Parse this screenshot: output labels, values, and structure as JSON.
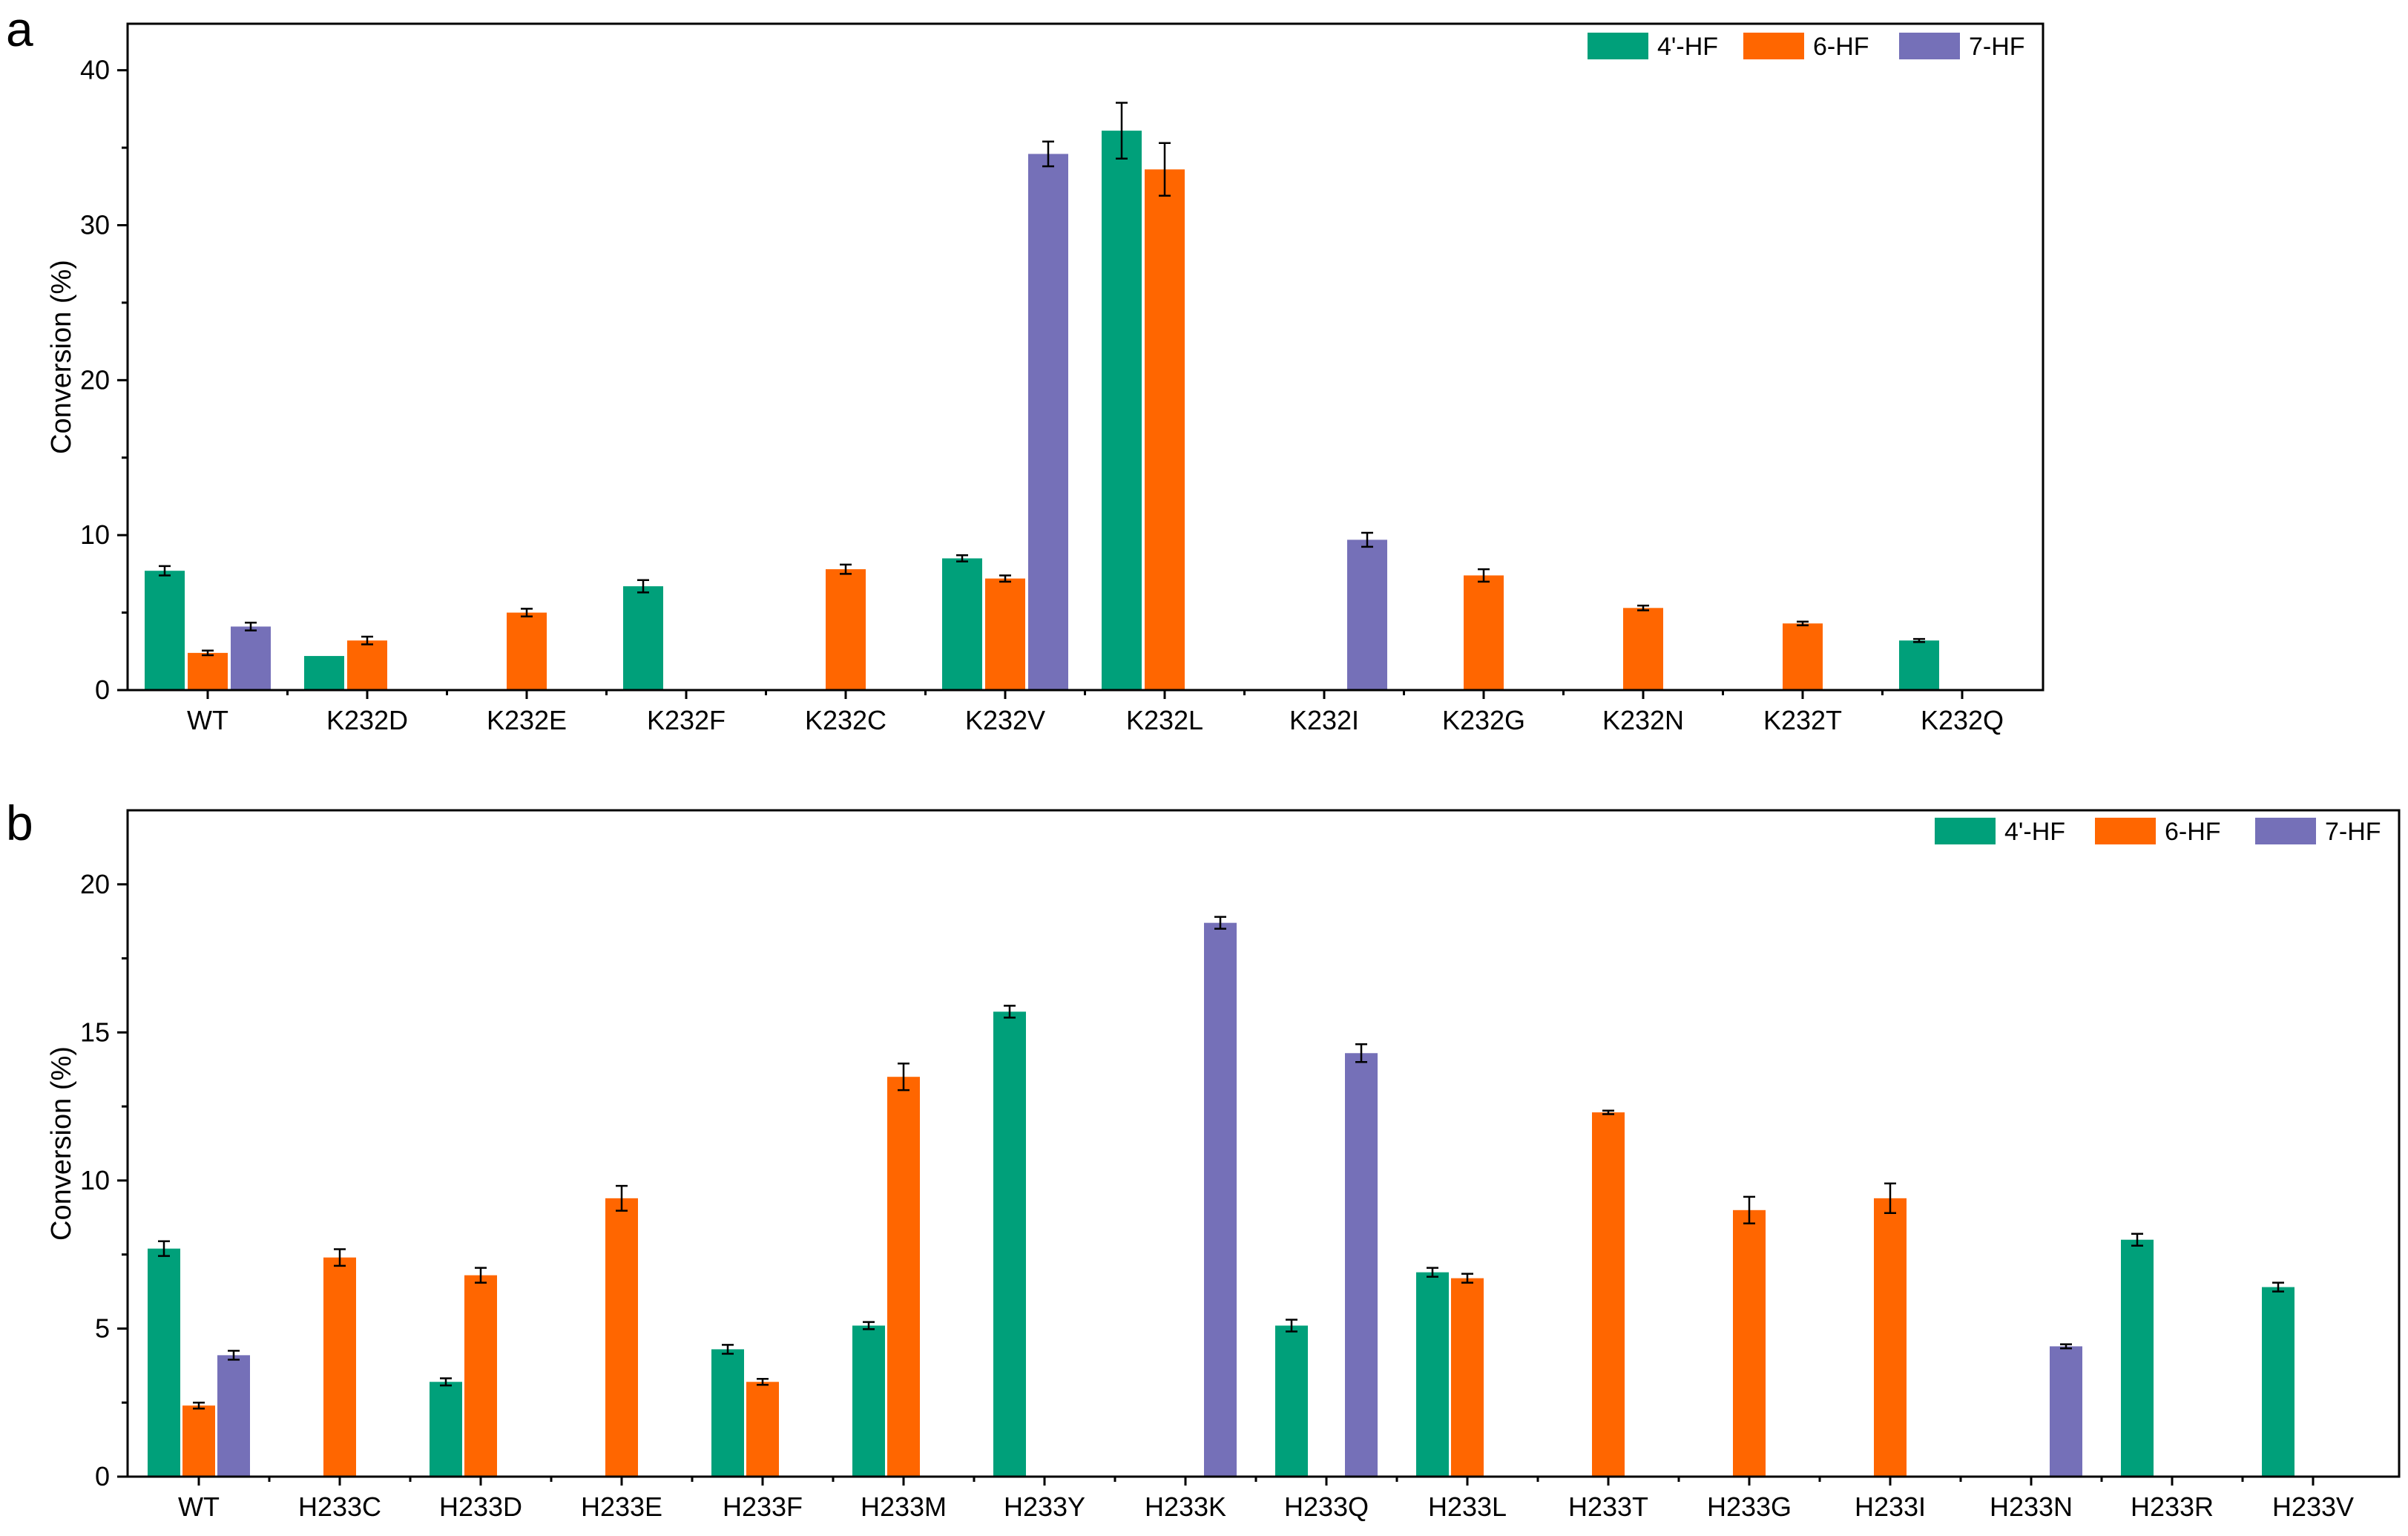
{
  "chart_data": [
    {
      "panel": "a",
      "type": "bar",
      "title": "",
      "xlabel": "",
      "ylabel": "Conversion (%)",
      "ylim": [
        0,
        43
      ],
      "yticks": [
        0,
        10,
        20,
        30,
        40
      ],
      "legend_position": "top-right",
      "categories": [
        "WT",
        "K232D",
        "K232E",
        "K232F",
        "K232C",
        "K232V",
        "K232L",
        "K232I",
        "K232G",
        "K232N",
        "K232T",
        "K232Q"
      ],
      "series": [
        {
          "name": "4'-HF",
          "color": "#00A07A",
          "values": [
            7.7,
            2.2,
            null,
            6.7,
            null,
            8.5,
            36.1,
            null,
            null,
            null,
            null,
            3.2
          ],
          "errors": [
            0.3,
            0,
            null,
            0.4,
            null,
            0.2,
            1.8,
            null,
            null,
            null,
            null,
            0.1
          ]
        },
        {
          "name": "6-HF",
          "color": "#FF6600",
          "values": [
            2.4,
            3.2,
            5.0,
            null,
            7.8,
            7.2,
            33.6,
            null,
            7.4,
            5.3,
            4.3,
            null
          ],
          "errors": [
            0.15,
            0.25,
            0.25,
            null,
            0.3,
            0.2,
            1.7,
            null,
            0.4,
            0.15,
            0.12,
            null
          ]
        },
        {
          "name": "7-HF",
          "color": "#7570B8",
          "values": [
            4.1,
            null,
            null,
            null,
            null,
            34.6,
            null,
            9.7,
            null,
            null,
            null,
            null
          ],
          "errors": [
            0.25,
            null,
            null,
            null,
            null,
            0.8,
            null,
            0.45,
            null,
            null,
            null,
            null
          ]
        }
      ]
    },
    {
      "panel": "b",
      "type": "bar",
      "title": "",
      "xlabel": "",
      "ylabel": "Conversion (%)",
      "ylim": [
        0,
        22.5
      ],
      "yticks": [
        0,
        5,
        10,
        15,
        20
      ],
      "legend_position": "top-right",
      "categories": [
        "WT",
        "H233C",
        "H233D",
        "H233E",
        "H233F",
        "H233M",
        "H233Y",
        "H233K",
        "H233Q",
        "H233L",
        "H233T",
        "H233G",
        "H233I",
        "H233N",
        "H233R",
        "H233V"
      ],
      "series": [
        {
          "name": "4'-HF",
          "color": "#00A07A",
          "values": [
            7.7,
            null,
            3.2,
            null,
            4.3,
            5.1,
            15.7,
            null,
            5.1,
            6.9,
            null,
            null,
            null,
            null,
            8.0,
            6.4
          ],
          "errors": [
            0.25,
            null,
            0.12,
            null,
            0.15,
            0.12,
            0.2,
            null,
            0.2,
            0.15,
            null,
            null,
            null,
            null,
            0.2,
            0.15
          ]
        },
        {
          "name": "6-HF",
          "color": "#FF6600",
          "values": [
            2.4,
            7.4,
            6.8,
            9.4,
            3.2,
            13.5,
            null,
            null,
            null,
            6.7,
            12.3,
            9.0,
            9.4,
            null,
            null,
            null
          ],
          "errors": [
            0.1,
            0.28,
            0.25,
            0.42,
            0.1,
            0.45,
            null,
            null,
            null,
            0.15,
            0.06,
            0.45,
            0.5,
            null,
            null,
            null
          ]
        },
        {
          "name": "7-HF",
          "color": "#7570B8",
          "values": [
            4.1,
            null,
            null,
            null,
            null,
            null,
            null,
            18.7,
            14.3,
            null,
            null,
            null,
            null,
            4.4,
            null,
            null
          ],
          "errors": [
            0.15,
            null,
            null,
            null,
            null,
            null,
            null,
            0.2,
            0.3,
            null,
            null,
            null,
            null,
            0.07,
            null,
            null
          ]
        }
      ]
    }
  ]
}
